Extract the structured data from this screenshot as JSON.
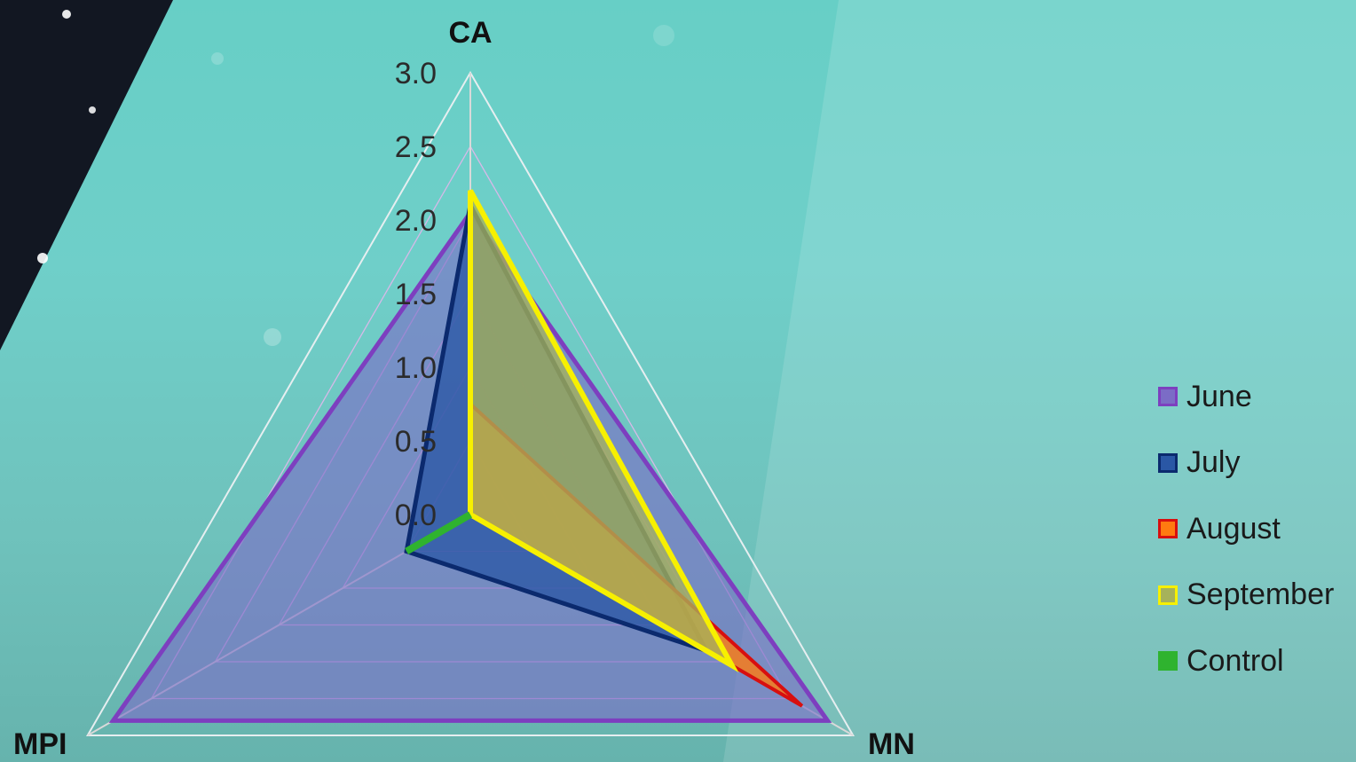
{
  "chart_data": {
    "type": "radar",
    "axes": [
      "CA",
      "MN",
      "MPI"
    ],
    "scale": {
      "min": 0.0,
      "max": 3.0,
      "step": 0.5
    },
    "tick_labels": [
      "0.0",
      "0.5",
      "1.0",
      "1.5",
      "2.0",
      "2.5",
      "3.0"
    ],
    "legend_position": "right",
    "series": [
      {
        "name": "June",
        "values": [
          2.05,
          2.8,
          2.8
        ],
        "stroke": "#7d3fbf",
        "fill": "#7b6cc6",
        "fill_opacity": 0.62,
        "stroke_width": 5
      },
      {
        "name": "July",
        "values": [
          2.1,
          1.85,
          0.5
        ],
        "stroke": "#0b2a6e",
        "fill": "#2a57a5",
        "fill_opacity": 0.78,
        "stroke_width": 5
      },
      {
        "name": "August",
        "values": [
          0.75,
          2.6,
          0.0
        ],
        "stroke": "#d80f0f",
        "fill": "#ff7a10",
        "fill_opacity": 0.8,
        "stroke_width": 4
      },
      {
        "name": "September",
        "values": [
          2.2,
          2.05,
          0.0
        ],
        "stroke": "#f7f000",
        "fill": "#a6b25a",
        "fill_opacity": 0.78,
        "stroke_width": 6
      },
      {
        "name": "Control",
        "values": [
          0.0,
          0.0,
          0.5
        ],
        "stroke": "#2fb32f",
        "fill": "#2fb32f",
        "fill_opacity": 0.9,
        "stroke_width": 8
      }
    ]
  }
}
